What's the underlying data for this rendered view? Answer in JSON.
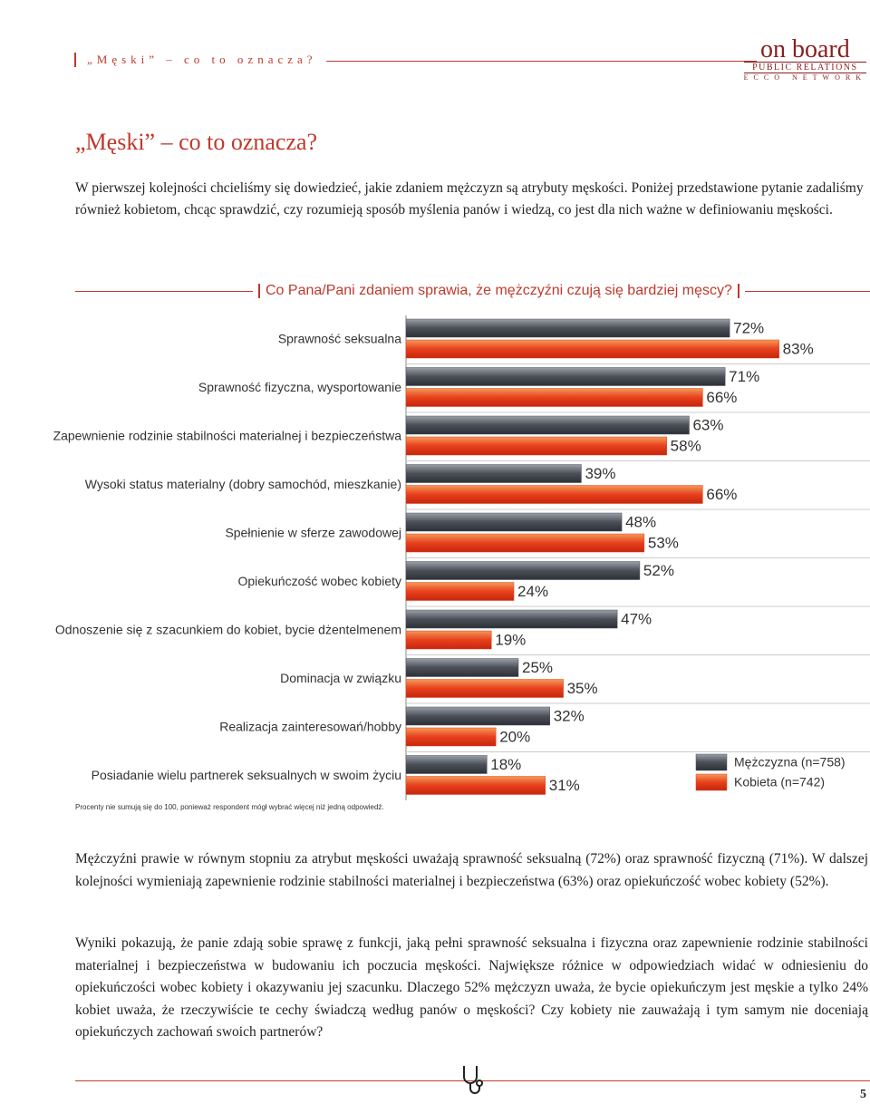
{
  "header": {
    "running_title": "„Męski” – co to oznacza?",
    "logo": {
      "name": "on board",
      "line1": "PUBLIC RELATIONS",
      "line2": "ECCO NETWORK"
    }
  },
  "title": "„Męski” – co to oznacza?",
  "intro": "W pierwszej kolejności chcieliśmy się dowiedzieć, jakie zdaniem mężczyzn są atrybuty męskości. Poniżej przedstawione pytanie zadaliśmy również kobietom, chcąc sprawdzić, czy rozumieją sposób myślenia panów i wiedzą, co jest dla nich ważne w definiowaniu męskości.",
  "chart_data": {
    "type": "hbar",
    "title": "Co Pana/Pani zdaniem sprawia, że mężczyźni czują się bardziej męscy?",
    "categories": [
      "Sprawność seksualna",
      "Sprawność fizyczna, wysportowanie",
      "Zapewnienie rodzinie stabilności materialnej i bezpieczeństwa",
      "Wysoki status materialny (dobry samochód, mieszkanie)",
      "Spełnienie w sferze zawodowej",
      "Opiekuńczość wobec kobiety",
      "Odnoszenie się z szacunkiem do kobiet, bycie dżentelmenem",
      "Dominacja w związku",
      "Realizacja zainteresowań/hobby",
      "Posiadanie wielu partnerek seksualnych w swoim życiu"
    ],
    "series": [
      {
        "name": "Mężczyzna (n=758)",
        "color": "#4b5058",
        "values": [
          72,
          71,
          63,
          39,
          48,
          52,
          47,
          25,
          32,
          18
        ],
        "value_labels": [
          "72%",
          "71%",
          "63%",
          "39%",
          "48%",
          "52%",
          "47%",
          "25%",
          "32%",
          "18%"
        ]
      },
      {
        "name": "Kobieta (n=742)",
        "color": "#e8401c",
        "values": [
          83,
          66,
          58,
          66,
          53,
          24,
          19,
          35,
          20,
          31
        ],
        "value_labels": [
          "83%",
          "66%",
          "58%",
          "66%",
          "53%",
          "24%",
          "19%",
          "35%",
          "20%",
          "31%"
        ]
      }
    ],
    "xlim": [
      0,
      100
    ],
    "legend": "lower right",
    "note": "Procenty nie sumują się do 100, ponieważ respondent mógł wybrać więcej niż jedną odpowiedź."
  },
  "paragraphs": [
    "Mężczyźni prawie w równym stopniu za atrybut męskości uważają sprawność seksualną (72%) oraz sprawność fizyczną (71%). W dalszej kolejności wymieniają zapewnienie rodzinie stabilności materialnej i bezpieczeństwa (63%) oraz opiekuńczość wobec kobiety (52%).",
    "Wyniki pokazują, że panie zdają sobie sprawę z funkcji, jaką pełni sprawność seksualna i fizyczna oraz zapewnienie rodzinie stabilności materialnej i bezpieczeństwa w budowaniu ich poczucia męskości. Największe różnice w odpowiedziach widać w odniesieniu do opiekuńczości wobec kobiety i okazywaniu jej szacunku. Dlaczego 52% mężczyzn uważa, że bycie opiekuńczym jest męskie a tylko 24% kobiet uważa, że rzeczywiście te cechy świadczą według panów o męskości? Czy kobiety nie zauważają i tym samym nie doceniają opiekuńczych zachowań swoich partnerów?"
  ],
  "page_number": "5"
}
